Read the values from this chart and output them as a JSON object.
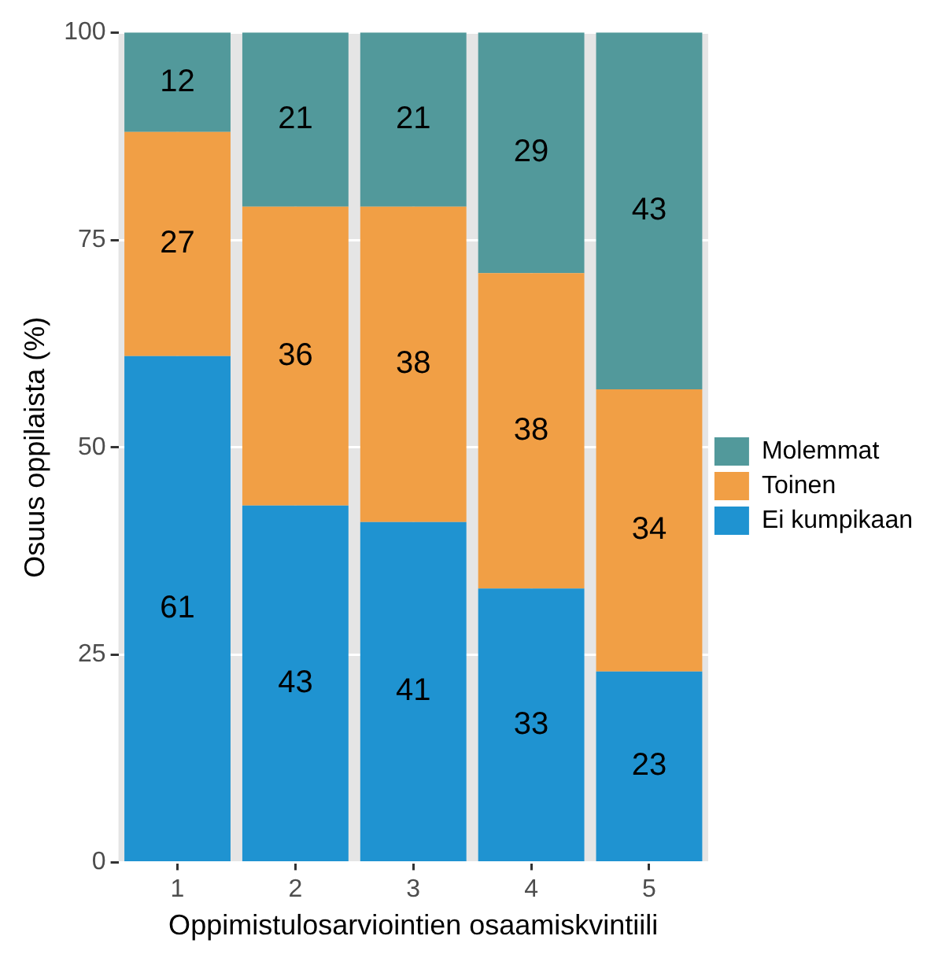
{
  "chart_data": {
    "type": "bar",
    "stacked": true,
    "xlabel": "Oppimistulosarviointien osaamiskvintiili",
    "ylabel": "Osuus oppilaista (%)",
    "categories": [
      "1",
      "2",
      "3",
      "4",
      "5"
    ],
    "series": [
      {
        "name": "Ei kumpikaan",
        "color": "#1f93d1",
        "values": [
          61,
          43,
          41,
          33,
          23
        ]
      },
      {
        "name": "Toinen",
        "color": "#f19f45",
        "values": [
          27,
          36,
          38,
          38,
          34
        ]
      },
      {
        "name": "Molemmat",
        "color": "#52999b",
        "values": [
          12,
          21,
          21,
          29,
          43
        ]
      }
    ],
    "ylim": [
      0,
      100
    ],
    "yticks": [
      0,
      25,
      50,
      75,
      100
    ],
    "grid": true,
    "legend": "right",
    "data_labels": true
  }
}
